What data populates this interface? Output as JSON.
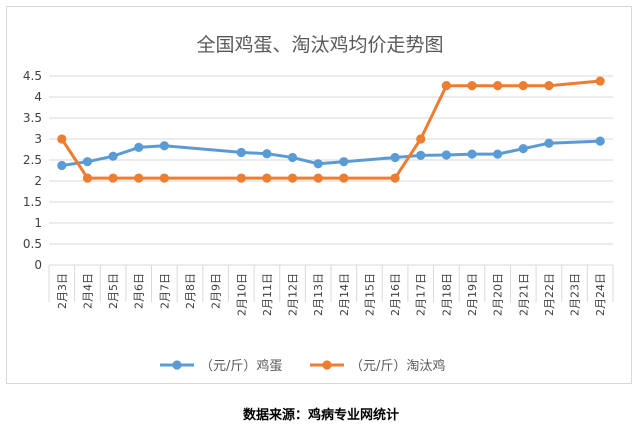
{
  "chart_data": {
    "type": "line",
    "title": "全国鸡蛋、淘汰鸡均价走势图",
    "categories": [
      "2月3日",
      "2月4日",
      "2月5日",
      "2月6日",
      "2月7日",
      "2月8日",
      "2月9日",
      "2月10日",
      "2月11日",
      "2月12日",
      "2月13日",
      "2月14日",
      "2月15日",
      "2月16日",
      "2月17日",
      "2月18日",
      "2月19日",
      "2月20日",
      "2月21日",
      "2月22日",
      "2月23日",
      "2月24日"
    ],
    "yticks": [
      "0",
      "0.5",
      "1",
      "1.5",
      "2",
      "2.5",
      "3",
      "3.5",
      "4",
      "4.5"
    ],
    "ylim": [
      0,
      4.5
    ],
    "grid": true,
    "legend_position": "bottom",
    "series": [
      {
        "name": "（元/斤）鸡蛋",
        "color": "#5b9bd5",
        "values": [
          2.37,
          2.46,
          2.59,
          2.8,
          2.84,
          null,
          null,
          2.68,
          2.65,
          2.56,
          2.41,
          2.46,
          null,
          2.56,
          2.61,
          2.62,
          2.64,
          2.64,
          2.77,
          2.9,
          null,
          2.95
        ]
      },
      {
        "name": "（元/斤）淘汰鸡",
        "color": "#ed7d31",
        "values": [
          3.0,
          2.07,
          2.07,
          2.07,
          2.07,
          null,
          null,
          2.07,
          2.07,
          2.07,
          2.07,
          2.07,
          null,
          2.07,
          3.0,
          4.27,
          4.27,
          4.27,
          4.27,
          4.27,
          null,
          4.38
        ]
      }
    ]
  },
  "source_text": "数据来源：鸡病专业网统计"
}
